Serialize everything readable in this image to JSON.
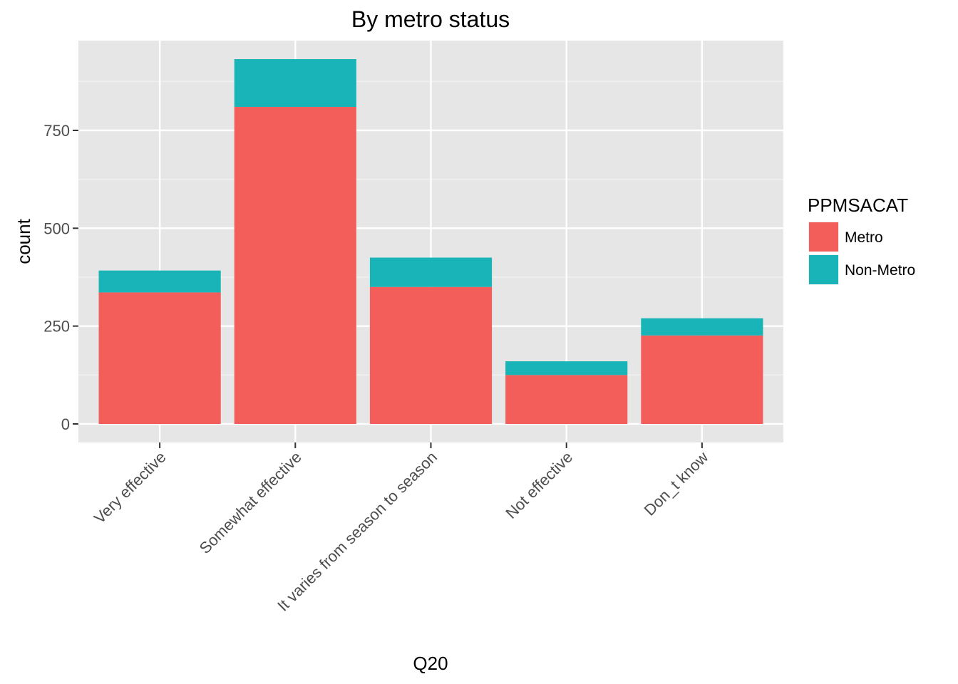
{
  "chart_data": {
    "type": "bar",
    "stacked": true,
    "title": "By metro status",
    "xlabel": "Q20",
    "ylabel": "count",
    "categories": [
      "Very effective",
      "Somewhat effective",
      "It varies from season to season",
      "Not effective",
      "Don_t know"
    ],
    "series": [
      {
        "name": "Metro",
        "color": "#F35E5A",
        "values": [
          336,
          810,
          350,
          125,
          226
        ]
      },
      {
        "name": "Non-Metro",
        "color": "#19B4B8",
        "values": [
          56,
          122,
          75,
          35,
          44
        ]
      }
    ],
    "ylim": [
      0,
      930
    ],
    "yticks": [
      0,
      250,
      500,
      750
    ],
    "grid": true,
    "panel_background": "#E6E6E6",
    "legend": {
      "title": "PPMSACAT",
      "position": "right"
    }
  }
}
